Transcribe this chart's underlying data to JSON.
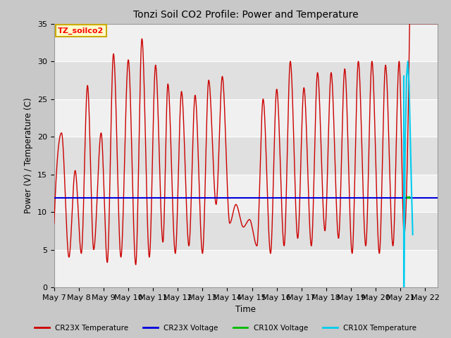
{
  "title": "Tonzi Soil CO2 Profile: Power and Temperature",
  "xlabel": "Time",
  "ylabel": "Power (V) / Temperature (C)",
  "ylim": [
    0,
    35
  ],
  "xlim_start": 0,
  "xlim_end": 15.5,
  "fig_bg_color": "#c8c8c8",
  "plot_bg_color": "#e8e8e8",
  "grid_band_light": "#f0f0f0",
  "grid_band_dark": "#d8d8d8",
  "annotation_text": "TZ_soilco2",
  "annotation_bg": "#ffffcc",
  "annotation_border": "#ccaa00",
  "cr23x_temp_color": "#cc0000",
  "cr23x_volt_color": "#0000dd",
  "cr10x_volt_color": "#00bb00",
  "cr10x_temp_color": "#00ccee",
  "cr23x_voltage_value": 11.9,
  "legend_labels": [
    "CR23X Temperature",
    "CR23X Voltage",
    "CR10X Voltage",
    "CR10X Temperature"
  ],
  "legend_colors": [
    "#cc0000",
    "#0000dd",
    "#00bb00",
    "#00ccee"
  ],
  "tick_labels": [
    "May 7",
    "May 8",
    "May 9",
    "May 10",
    "May 11",
    "May 12",
    "May 13",
    "May 14",
    "May 15",
    "May 16",
    "May 17",
    "May 18",
    "May 19",
    "May 20",
    "May 21",
    "May 22"
  ],
  "peak_days": [
    0.3,
    0.85,
    1.35,
    1.9,
    2.4,
    3.0,
    3.55,
    4.1,
    4.6,
    5.15,
    5.7,
    6.25,
    6.8,
    7.35,
    7.9,
    8.45,
    9.0,
    9.55,
    10.1,
    10.65,
    11.2,
    11.75,
    12.3,
    12.85,
    13.4,
    13.95,
    14.35
  ],
  "peak_vals": [
    20.5,
    15.5,
    26.8,
    20.5,
    31.0,
    30.2,
    33.0,
    29.5,
    27.0,
    26.0,
    25.5,
    27.5,
    28.0,
    11.0,
    9.0,
    25.0,
    26.3,
    30.0,
    26.5,
    28.5,
    28.5,
    29.0,
    30.0,
    30.0,
    29.5,
    30.0,
    30.0
  ],
  "trough_days": [
    0.0,
    0.6,
    1.1,
    1.6,
    2.15,
    2.7,
    3.3,
    3.85,
    4.4,
    4.9,
    5.45,
    6.0,
    6.55,
    7.1,
    7.65,
    8.2,
    8.75,
    9.3,
    9.85,
    10.4,
    10.95,
    11.5,
    12.05,
    12.6,
    13.15,
    13.7,
    14.15
  ],
  "trough_vals": [
    8.5,
    4.0,
    4.5,
    5.0,
    3.3,
    4.0,
    3.0,
    4.0,
    6.0,
    4.5,
    5.5,
    4.5,
    11.0,
    8.5,
    8.0,
    5.5,
    4.5,
    5.5,
    6.5,
    5.5,
    7.5,
    6.5,
    4.5,
    5.5,
    4.5,
    5.5,
    7.0
  ]
}
